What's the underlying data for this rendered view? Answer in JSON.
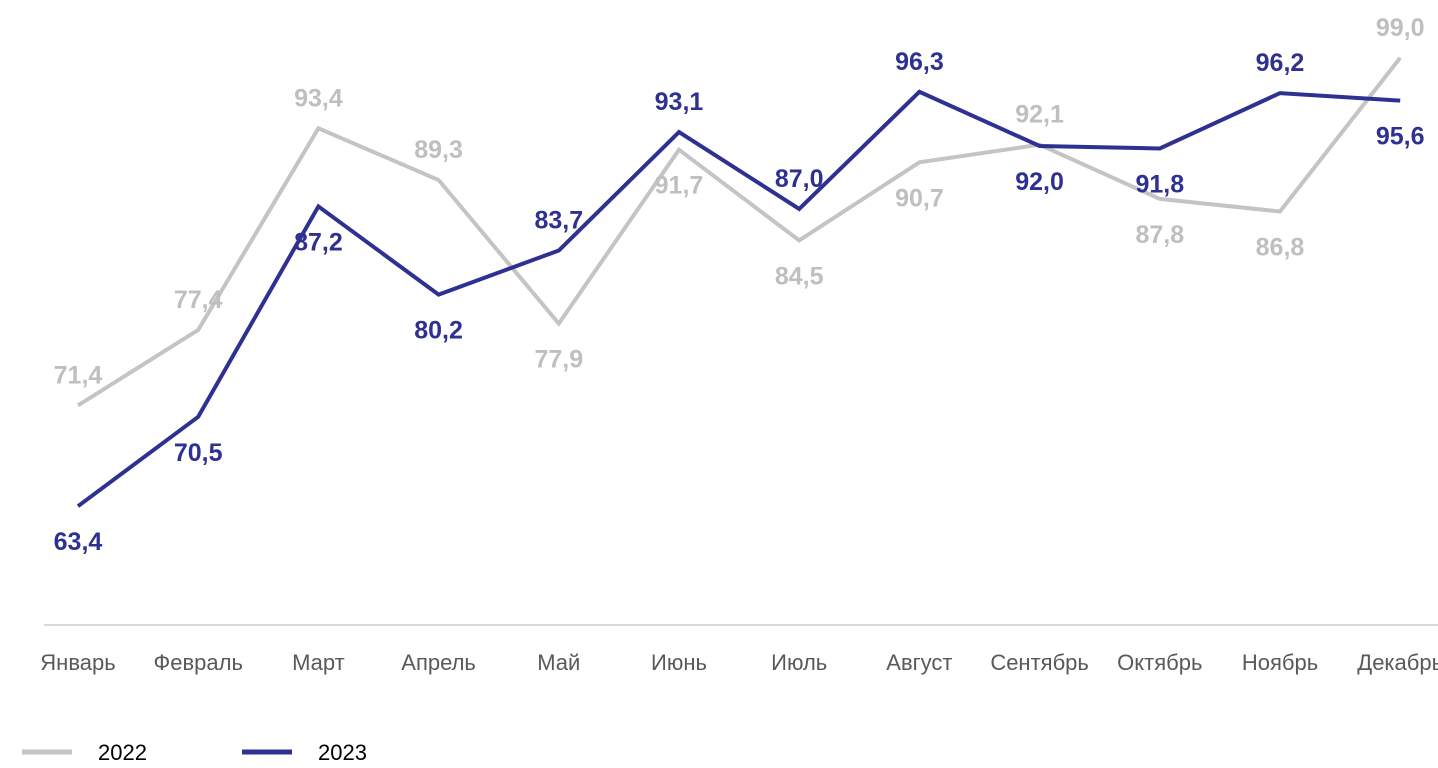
{
  "chart_data": {
    "type": "line",
    "title": "",
    "xlabel": "",
    "ylabel": "",
    "categories": [
      "Январь",
      "Февраль",
      "Март",
      "Апрель",
      "Май",
      "Июнь",
      "Июль",
      "Август",
      "Сентябрь",
      "Октябрь",
      "Ноябрь",
      "Декабрь"
    ],
    "series": [
      {
        "name": "2022",
        "color": "#c4c4c4",
        "values": [
          71.4,
          77.4,
          93.4,
          89.3,
          77.9,
          91.7,
          84.5,
          90.7,
          92.1,
          87.8,
          86.8,
          99.0
        ],
        "labels": [
          "71,4",
          "77,4",
          "93,4",
          "89,3",
          "77,9",
          "91,7",
          "84,5",
          "90,7",
          "92,1",
          "87,8",
          "86,8",
          "99,0"
        ]
      },
      {
        "name": "2023",
        "color": "#2e3192",
        "values": [
          63.4,
          70.5,
          87.2,
          80.2,
          83.7,
          93.1,
          87.0,
          96.3,
          92.0,
          91.8,
          96.2,
          95.6
        ],
        "labels": [
          "63,4",
          "70,5",
          "87,2",
          "80,2",
          "83,7",
          "93,1",
          "87,0",
          "96,3",
          "92,0",
          "91,8",
          "96,2",
          "95,6"
        ]
      }
    ],
    "ylim": [
      55,
      102
    ],
    "grid": false,
    "legend_position": "bottom-left",
    "data_labels": true
  }
}
